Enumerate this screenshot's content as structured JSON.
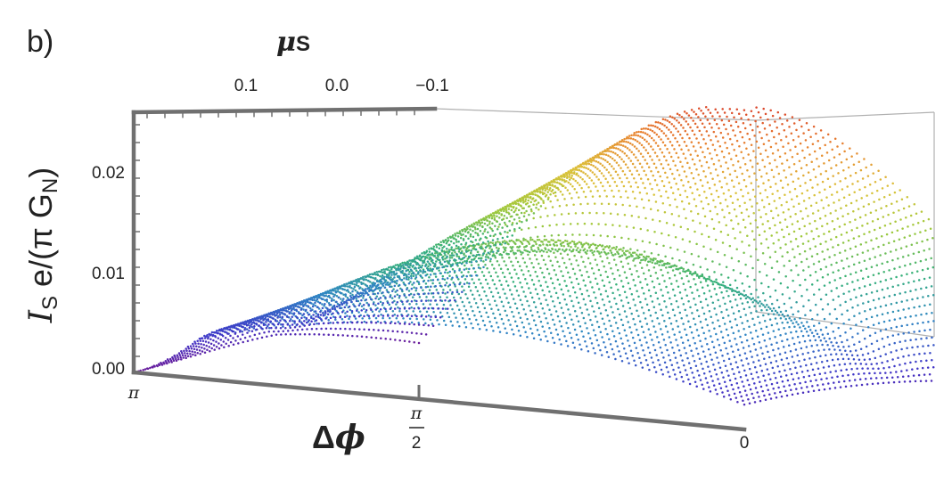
{
  "panel_label": "b)",
  "chart_data": {
    "type": "scatter",
    "dimensions": "3d",
    "style": "dense point cloud surface, rainbow colored by height",
    "xlabel": "Δϕ",
    "xlabel_parts": {
      "delta": "Δ",
      "symbol": "ϕ"
    },
    "ylabel": "μS",
    "ylabel_parts": {
      "symbol": "μ",
      "sub": "S"
    },
    "zlabel": "IS e/(π GN)",
    "zlabel_parts": {
      "I": "I",
      "S": "S",
      "mid": " e/(π G",
      "N": "N",
      "close": ")"
    },
    "x_ticks": [
      {
        "value": 3.14159,
        "label": "π"
      },
      {
        "value": 1.5708,
        "num": "π",
        "den": "2"
      },
      {
        "value": 0,
        "label": "0"
      }
    ],
    "y_ticks": [
      {
        "value": 0.1,
        "label": "0.1"
      },
      {
        "value": 0.0,
        "label": "0.0"
      },
      {
        "value": -0.1,
        "label": "−0.1"
      }
    ],
    "z_ticks": [
      {
        "value": 0.0,
        "label": "0.00"
      },
      {
        "value": 0.01,
        "label": "0.01"
      },
      {
        "value": 0.02,
        "label": "0.02"
      }
    ],
    "xlim": [
      0,
      3.14159
    ],
    "ylim": [
      -0.15,
      0.15
    ],
    "zlim": [
      0,
      0.026
    ],
    "colors": [
      "#6a1b9a",
      "#3f35c8",
      "#2f86c4",
      "#34b07a",
      "#9dc93c",
      "#dcc23a",
      "#e8832e",
      "#d83a2b"
    ],
    "peak": {
      "x": 1.5708,
      "y": -0.15,
      "z": 0.0255
    },
    "ridge_front_mu_max": {
      "x": 3.14159,
      "y": 0.15,
      "z": 0.0
    },
    "front_edge_mu_max": {
      "x": 0,
      "y": 0.15,
      "z": 0.0
    },
    "back_left_corner": {
      "x": 3.14159,
      "y": -0.15,
      "z": 0.019
    }
  }
}
